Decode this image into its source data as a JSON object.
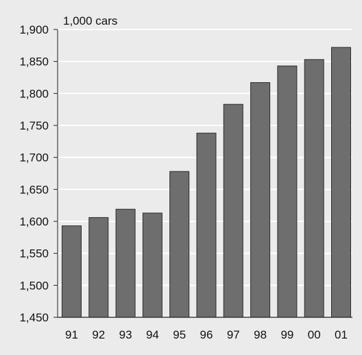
{
  "chart_data": {
    "type": "bar",
    "title": "",
    "unit_label": "1,000 cars",
    "xlabel": "",
    "ylabel": "",
    "categories": [
      "91",
      "92",
      "93",
      "94",
      "95",
      "96",
      "97",
      "98",
      "99",
      "00",
      "01"
    ],
    "values": [
      1593,
      1606,
      1619,
      1613,
      1678,
      1738,
      1783,
      1817,
      1843,
      1853,
      1872
    ],
    "ylim": [
      1450,
      1900
    ],
    "yticks": [
      1450,
      1500,
      1550,
      1600,
      1650,
      1700,
      1750,
      1800,
      1850,
      1900
    ],
    "ytick_labels": [
      "1,450",
      "1,500",
      "1,550",
      "1,600",
      "1,650",
      "1,700",
      "1,750",
      "1,800",
      "1,850",
      "1,900"
    ],
    "grid": true,
    "legend": "none",
    "colors": {
      "background": "#ebebeb",
      "bar_fill": "#6e6e6e",
      "bar_stroke": "#2b2b2b",
      "grid": "#ffffff",
      "axis": "#222222"
    }
  }
}
